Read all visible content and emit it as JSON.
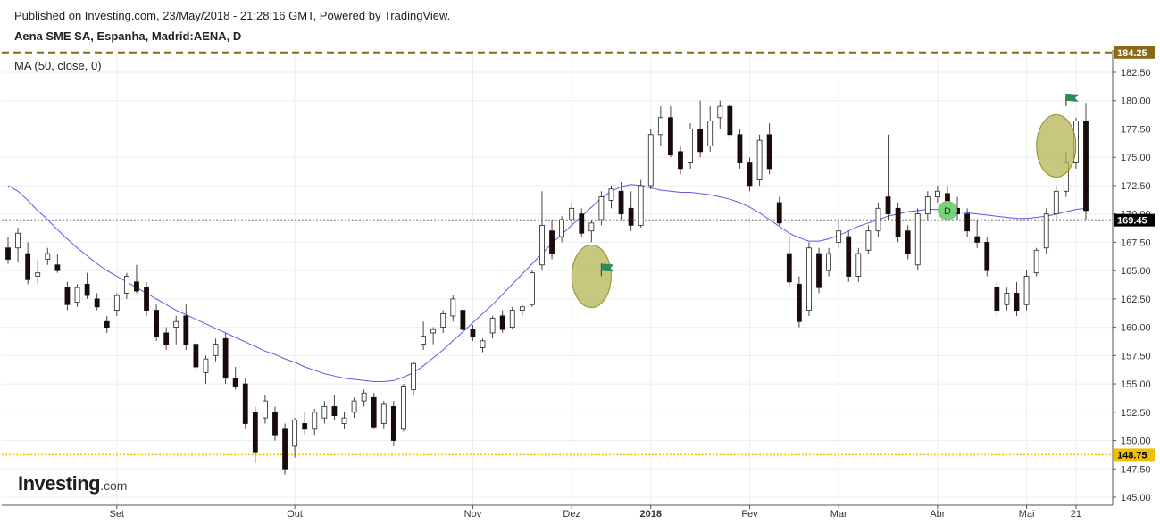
{
  "header": {
    "published": "Published on Investing.com, 23/May/2018 - 21:28:16 GMT, Powered by TradingView.",
    "symbol_title": "Aena SME SA, Espanha, Madrid:AENA, D",
    "ma_label": "MA (50, close, 0)"
  },
  "logo": {
    "main": "Investing",
    "suffix": ".com"
  },
  "chart_data": {
    "type": "candlestick",
    "y_axis": {
      "side": "right",
      "range": [
        144.5,
        185.0
      ],
      "ticks": [
        145,
        147.5,
        150,
        152.5,
        155,
        157.5,
        160,
        162.5,
        165,
        167.5,
        170,
        172.5,
        175,
        177.5,
        180,
        182.5
      ],
      "tick_labels": [
        "145.00",
        "147.50",
        "150.00",
        "152.50",
        "155.00",
        "157.50",
        "160.00",
        "162.50",
        "165.00",
        "167.50",
        "170.00",
        "172.50",
        "175.00",
        "177.50",
        "180.00",
        "182.50"
      ]
    },
    "x_axis": {
      "labels": [
        {
          "label": "Set",
          "day": 11
        },
        {
          "label": "Out",
          "day": 29
        },
        {
          "label": "Nov",
          "day": 47
        },
        {
          "label": "Dez",
          "day": 57
        },
        {
          "label": "2018",
          "day": 65
        },
        {
          "label": "Fev",
          "day": 75
        },
        {
          "label": "Mar",
          "day": 84
        },
        {
          "label": "Abr",
          "day": 94
        },
        {
          "label": "Mai",
          "day": 103
        },
        {
          "label": "21",
          "day": 108
        }
      ],
      "day_count": 110
    },
    "reference_lines": [
      {
        "label": "184.25",
        "value": 184.25,
        "color": "#8b6914",
        "style": "dashed",
        "badge_text_color": "#ffffff"
      },
      {
        "label": "169.45",
        "value": 169.45,
        "color": "#000000",
        "style": "dotted",
        "badge_text_color": "#ffffff"
      },
      {
        "label": "148.75",
        "value": 148.75,
        "color": "#f0c000",
        "style": "dotted",
        "badge_text_color": "#000000"
      }
    ],
    "series": [
      {
        "name": "Aena SME SA, Espanha, Madrid:AENA, D",
        "kind": "ohlc",
        "data": [
          {
            "o": 167.0,
            "h": 168.0,
            "l": 165.6,
            "c": 166.0
          },
          {
            "o": 167.0,
            "h": 168.8,
            "l": 165.8,
            "c": 168.3
          },
          {
            "o": 166.5,
            "h": 167.5,
            "l": 163.8,
            "c": 164.2
          },
          {
            "o": 164.5,
            "h": 166.0,
            "l": 163.8,
            "c": 164.8
          },
          {
            "o": 166.0,
            "h": 167.0,
            "l": 165.5,
            "c": 166.5
          },
          {
            "o": 165.5,
            "h": 166.5,
            "l": 164.8,
            "c": 165.0
          },
          {
            "o": 163.5,
            "h": 164.0,
            "l": 161.5,
            "c": 162.0
          },
          {
            "o": 162.2,
            "h": 163.8,
            "l": 161.8,
            "c": 163.5
          },
          {
            "o": 163.8,
            "h": 164.8,
            "l": 162.5,
            "c": 162.8
          },
          {
            "o": 162.5,
            "h": 163.0,
            "l": 161.5,
            "c": 161.8
          },
          {
            "o": 160.5,
            "h": 161.0,
            "l": 159.5,
            "c": 160.0
          },
          {
            "o": 161.5,
            "h": 163.0,
            "l": 161.0,
            "c": 162.8
          },
          {
            "o": 163.0,
            "h": 164.8,
            "l": 162.5,
            "c": 164.5
          },
          {
            "o": 164.0,
            "h": 165.5,
            "l": 163.0,
            "c": 163.2
          },
          {
            "o": 163.5,
            "h": 164.0,
            "l": 161.0,
            "c": 161.5
          },
          {
            "o": 161.5,
            "h": 162.0,
            "l": 158.8,
            "c": 159.2
          },
          {
            "o": 159.5,
            "h": 160.0,
            "l": 158.0,
            "c": 158.5
          },
          {
            "o": 160.0,
            "h": 161.0,
            "l": 158.5,
            "c": 160.5
          },
          {
            "o": 161.0,
            "h": 162.0,
            "l": 158.0,
            "c": 158.5
          },
          {
            "o": 158.5,
            "h": 159.0,
            "l": 156.0,
            "c": 156.5
          },
          {
            "o": 156.0,
            "h": 157.5,
            "l": 155.0,
            "c": 157.2
          },
          {
            "o": 157.5,
            "h": 159.0,
            "l": 157.0,
            "c": 158.5
          },
          {
            "o": 159.0,
            "h": 159.5,
            "l": 155.0,
            "c": 155.5
          },
          {
            "o": 155.5,
            "h": 156.5,
            "l": 154.5,
            "c": 154.8
          },
          {
            "o": 155.0,
            "h": 155.5,
            "l": 151.0,
            "c": 151.5
          },
          {
            "o": 152.5,
            "h": 153.0,
            "l": 148.0,
            "c": 149.0
          },
          {
            "o": 152.0,
            "h": 154.0,
            "l": 151.5,
            "c": 153.5
          },
          {
            "o": 152.5,
            "h": 153.0,
            "l": 150.0,
            "c": 150.5
          },
          {
            "o": 151.0,
            "h": 151.5,
            "l": 147.0,
            "c": 147.5
          },
          {
            "o": 149.5,
            "h": 152.0,
            "l": 148.5,
            "c": 151.8
          },
          {
            "o": 151.5,
            "h": 152.5,
            "l": 150.5,
            "c": 151.0
          },
          {
            "o": 151.0,
            "h": 152.8,
            "l": 150.5,
            "c": 152.5
          },
          {
            "o": 152.0,
            "h": 153.5,
            "l": 151.5,
            "c": 153.0
          },
          {
            "o": 153.0,
            "h": 154.0,
            "l": 151.8,
            "c": 152.2
          },
          {
            "o": 151.5,
            "h": 152.5,
            "l": 151.0,
            "c": 152.0
          },
          {
            "o": 152.5,
            "h": 153.8,
            "l": 152.0,
            "c": 153.5
          },
          {
            "o": 153.5,
            "h": 154.5,
            "l": 153.0,
            "c": 154.2
          },
          {
            "o": 153.8,
            "h": 154.2,
            "l": 151.0,
            "c": 151.2
          },
          {
            "o": 151.5,
            "h": 153.5,
            "l": 151.0,
            "c": 153.2
          },
          {
            "o": 153.0,
            "h": 153.5,
            "l": 149.5,
            "c": 150.0
          },
          {
            "o": 151.0,
            "h": 155.0,
            "l": 150.8,
            "c": 154.8
          },
          {
            "o": 154.5,
            "h": 157.0,
            "l": 154.0,
            "c": 156.8
          },
          {
            "o": 158.5,
            "h": 160.5,
            "l": 158.0,
            "c": 159.2
          },
          {
            "o": 159.5,
            "h": 160.0,
            "l": 158.5,
            "c": 159.8
          },
          {
            "o": 160.0,
            "h": 161.5,
            "l": 159.5,
            "c": 161.2
          },
          {
            "o": 161.0,
            "h": 162.8,
            "l": 160.5,
            "c": 162.5
          },
          {
            "o": 161.5,
            "h": 162.0,
            "l": 159.5,
            "c": 159.8
          },
          {
            "o": 159.8,
            "h": 160.2,
            "l": 158.8,
            "c": 159.2
          },
          {
            "o": 158.2,
            "h": 159.0,
            "l": 157.8,
            "c": 158.8
          },
          {
            "o": 159.5,
            "h": 161.0,
            "l": 159.0,
            "c": 160.8
          },
          {
            "o": 161.0,
            "h": 161.5,
            "l": 159.5,
            "c": 159.8
          },
          {
            "o": 160.0,
            "h": 161.8,
            "l": 159.8,
            "c": 161.5
          },
          {
            "o": 161.5,
            "h": 162.0,
            "l": 161.0,
            "c": 161.8
          },
          {
            "o": 162.0,
            "h": 165.0,
            "l": 161.8,
            "c": 164.8
          },
          {
            "o": 165.5,
            "h": 172.0,
            "l": 165.0,
            "c": 169.0
          },
          {
            "o": 168.5,
            "h": 169.5,
            "l": 166.0,
            "c": 166.5
          },
          {
            "o": 168.0,
            "h": 169.8,
            "l": 167.5,
            "c": 169.5
          },
          {
            "o": 169.5,
            "h": 171.0,
            "l": 169.0,
            "c": 170.5
          },
          {
            "o": 170.0,
            "h": 170.5,
            "l": 168.0,
            "c": 168.3
          },
          {
            "o": 168.5,
            "h": 169.5,
            "l": 167.5,
            "c": 169.2
          },
          {
            "o": 169.5,
            "h": 172.0,
            "l": 169.0,
            "c": 171.5
          },
          {
            "o": 171.2,
            "h": 172.5,
            "l": 170.5,
            "c": 172.2
          },
          {
            "o": 172.0,
            "h": 172.8,
            "l": 169.5,
            "c": 170.0
          },
          {
            "o": 170.5,
            "h": 172.0,
            "l": 168.5,
            "c": 169.0
          },
          {
            "o": 169.0,
            "h": 173.0,
            "l": 168.8,
            "c": 172.5
          },
          {
            "o": 172.5,
            "h": 177.5,
            "l": 172.2,
            "c": 177.0
          },
          {
            "o": 177.0,
            "h": 179.5,
            "l": 176.0,
            "c": 178.5
          },
          {
            "o": 178.5,
            "h": 179.5,
            "l": 175.0,
            "c": 175.2
          },
          {
            "o": 175.5,
            "h": 176.0,
            "l": 173.5,
            "c": 174.0
          },
          {
            "o": 174.5,
            "h": 178.0,
            "l": 174.0,
            "c": 177.5
          },
          {
            "o": 177.5,
            "h": 180.0,
            "l": 175.0,
            "c": 175.5
          },
          {
            "o": 176.0,
            "h": 179.5,
            "l": 175.5,
            "c": 178.2
          },
          {
            "o": 178.5,
            "h": 180.0,
            "l": 177.5,
            "c": 179.5
          },
          {
            "o": 179.5,
            "h": 179.8,
            "l": 176.5,
            "c": 177.0
          },
          {
            "o": 177.0,
            "h": 177.5,
            "l": 174.0,
            "c": 174.5
          },
          {
            "o": 174.5,
            "h": 175.0,
            "l": 172.0,
            "c": 172.5
          },
          {
            "o": 173.0,
            "h": 177.0,
            "l": 172.5,
            "c": 176.5
          },
          {
            "o": 177.0,
            "h": 178.0,
            "l": 173.5,
            "c": 174.0
          },
          {
            "o": 171.0,
            "h": 171.5,
            "l": 169.0,
            "c": 169.2
          },
          {
            "o": 166.5,
            "h": 168.0,
            "l": 163.5,
            "c": 164.0
          },
          {
            "o": 163.8,
            "h": 164.5,
            "l": 160.0,
            "c": 160.5
          },
          {
            "o": 161.5,
            "h": 167.5,
            "l": 161.0,
            "c": 167.0
          },
          {
            "o": 166.5,
            "h": 167.0,
            "l": 163.0,
            "c": 163.5
          },
          {
            "o": 165.0,
            "h": 167.0,
            "l": 164.5,
            "c": 166.5
          },
          {
            "o": 167.5,
            "h": 169.5,
            "l": 167.0,
            "c": 168.5
          },
          {
            "o": 168.0,
            "h": 168.5,
            "l": 164.0,
            "c": 164.5
          },
          {
            "o": 164.5,
            "h": 167.0,
            "l": 164.0,
            "c": 166.5
          },
          {
            "o": 166.8,
            "h": 169.0,
            "l": 166.5,
            "c": 168.5
          },
          {
            "o": 168.5,
            "h": 171.0,
            "l": 168.0,
            "c": 170.5
          },
          {
            "o": 171.5,
            "h": 177.0,
            "l": 169.5,
            "c": 170.0
          },
          {
            "o": 170.5,
            "h": 171.0,
            "l": 167.5,
            "c": 168.0
          },
          {
            "o": 168.5,
            "h": 169.0,
            "l": 166.0,
            "c": 166.5
          },
          {
            "o": 165.5,
            "h": 170.5,
            "l": 165.0,
            "c": 170.0
          },
          {
            "o": 170.0,
            "h": 172.0,
            "l": 169.5,
            "c": 171.5
          },
          {
            "o": 171.5,
            "h": 172.5,
            "l": 171.0,
            "c": 172.0
          },
          {
            "o": 171.8,
            "h": 172.5,
            "l": 170.5,
            "c": 171.0
          },
          {
            "o": 170.5,
            "h": 171.5,
            "l": 169.5,
            "c": 170.0
          },
          {
            "o": 170.0,
            "h": 170.5,
            "l": 168.0,
            "c": 168.5
          },
          {
            "o": 168.0,
            "h": 169.5,
            "l": 167.0,
            "c": 167.5
          },
          {
            "o": 167.5,
            "h": 168.0,
            "l": 164.5,
            "c": 165.0
          },
          {
            "o": 163.5,
            "h": 164.0,
            "l": 161.0,
            "c": 161.5
          },
          {
            "o": 162.0,
            "h": 163.5,
            "l": 161.5,
            "c": 163.0
          },
          {
            "o": 163.0,
            "h": 164.0,
            "l": 161.0,
            "c": 161.5
          },
          {
            "o": 162.0,
            "h": 165.0,
            "l": 161.5,
            "c": 164.5
          },
          {
            "o": 164.8,
            "h": 167.0,
            "l": 164.5,
            "c": 166.8
          },
          {
            "o": 167.0,
            "h": 170.5,
            "l": 166.5,
            "c": 170.0
          },
          {
            "o": 170.0,
            "h": 172.5,
            "l": 169.5,
            "c": 172.0
          },
          {
            "o": 172.0,
            "h": 175.5,
            "l": 171.5,
            "c": 174.5
          },
          {
            "o": 174.5,
            "h": 178.5,
            "l": 174.0,
            "c": 178.2
          },
          {
            "o": 178.2,
            "h": 179.8,
            "l": 169.5,
            "c": 170.3
          }
        ]
      },
      {
        "name": "MA (50, close, 0)",
        "kind": "line",
        "color": "#5a5ae6",
        "y": [
          172.5,
          172.0,
          171.2,
          170.3,
          169.5,
          168.6,
          167.8,
          167.0,
          166.3,
          165.6,
          165.0,
          164.5,
          164.0,
          163.5,
          163.0,
          162.5,
          162.0,
          161.5,
          161.1,
          160.7,
          160.3,
          159.9,
          159.5,
          159.1,
          158.7,
          158.3,
          157.9,
          157.6,
          157.2,
          156.9,
          156.5,
          156.2,
          155.9,
          155.7,
          155.5,
          155.4,
          155.3,
          155.2,
          155.2,
          155.3,
          155.6,
          156.0,
          156.6,
          157.3,
          158.0,
          158.8,
          159.6,
          160.4,
          161.2,
          162.0,
          162.9,
          163.8,
          164.7,
          165.6,
          166.5,
          167.4,
          168.2,
          169.0,
          169.8,
          170.6,
          171.4,
          172.0,
          172.4,
          172.6,
          172.5,
          172.3,
          172.1,
          172.0,
          171.9,
          171.9,
          171.8,
          171.7,
          171.5,
          171.3,
          171.0,
          170.6,
          170.1,
          169.5,
          168.9,
          168.3,
          167.9,
          167.6,
          167.6,
          167.8,
          168.1,
          168.5,
          168.9,
          169.2,
          169.5,
          169.8,
          170.0,
          170.2,
          170.3,
          170.4,
          170.4,
          170.3,
          170.2,
          170.1,
          170.0,
          169.9,
          169.8,
          169.7,
          169.6,
          169.6,
          169.7,
          169.8,
          170.0,
          170.2,
          170.4,
          170.5
        ]
      }
    ],
    "annotations": [
      {
        "type": "ellipse",
        "day": 59,
        "value": 164.5
      },
      {
        "type": "flag",
        "day": 60,
        "value": 165.3
      },
      {
        "type": "ellipse",
        "day": 106,
        "value": 176.0
      },
      {
        "type": "flag",
        "day": 107,
        "value": 180.3
      },
      {
        "type": "circle-marker",
        "text": "D",
        "day": 95,
        "value": 170.3
      }
    ],
    "colors": {
      "up": "#ffffff",
      "down": "#1a0a0a",
      "wick": "#444444",
      "ellipse_fill": "#b4b455",
      "ellipse_stroke": "#8e8e25",
      "flag": "#2e8b57",
      "marker_fill": "#7ad17a"
    }
  }
}
